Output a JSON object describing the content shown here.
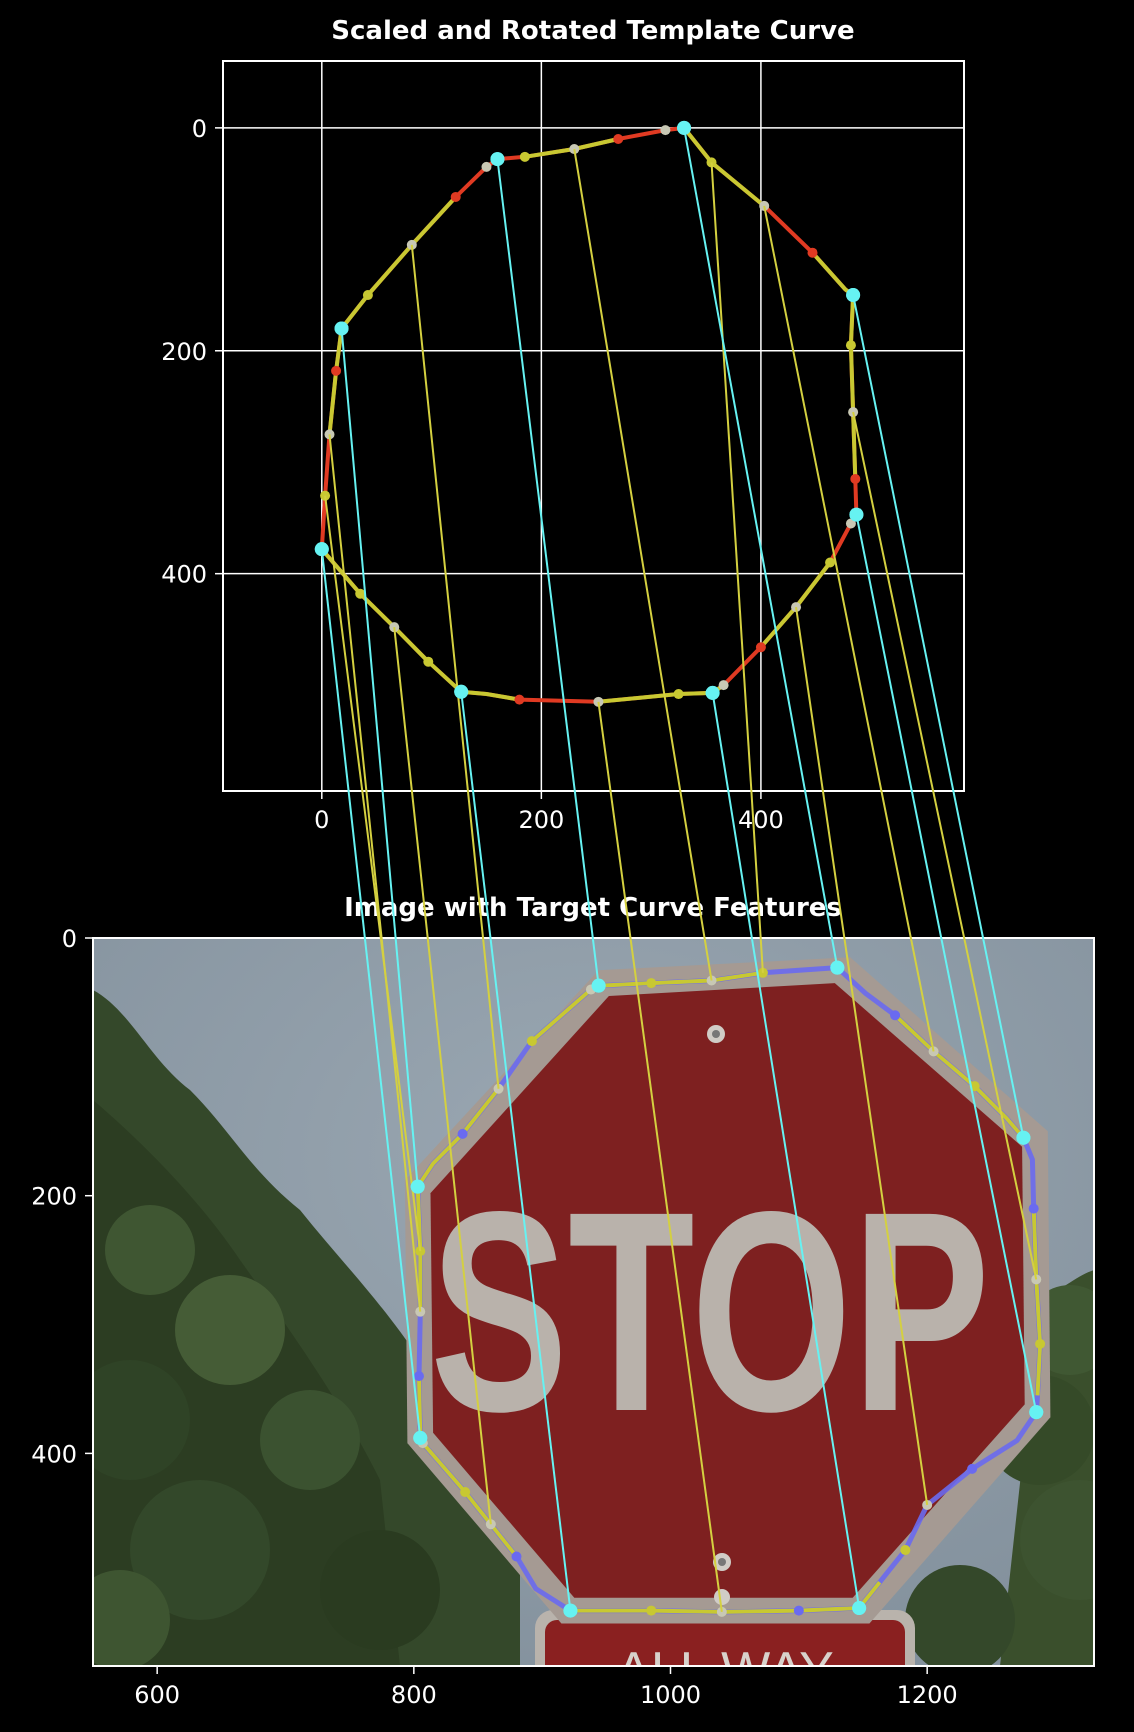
{
  "chart_data": [
    {
      "type": "scatter",
      "title": "Scaled and Rotated Template Curve",
      "xlim": [
        -90,
        585
      ],
      "ylim": [
        595,
        -60
      ],
      "xticks": [
        0,
        200,
        400
      ],
      "yticks": [
        0,
        200,
        400
      ],
      "grid": true,
      "background": "#000000",
      "curve": [
        [
          330,
          0
        ],
        [
          313,
          2
        ],
        [
          270,
          10
        ],
        [
          230,
          19
        ],
        [
          185,
          26
        ],
        [
          160,
          28
        ],
        [
          150,
          35
        ],
        [
          122,
          62
        ],
        [
          82,
          105
        ],
        [
          42,
          150
        ],
        [
          18,
          180
        ],
        [
          13,
          218
        ],
        [
          7,
          275
        ],
        [
          3,
          330
        ],
        [
          0,
          378
        ],
        [
          35,
          418
        ],
        [
          66,
          448
        ],
        [
          97,
          479
        ],
        [
          127,
          506
        ],
        [
          150,
          508
        ],
        [
          180,
          513
        ],
        [
          252,
          515
        ],
        [
          325,
          508
        ],
        [
          356,
          507
        ],
        [
          366,
          500
        ],
        [
          400,
          466
        ],
        [
          432,
          430
        ],
        [
          463,
          390
        ],
        [
          482,
          355
        ],
        [
          487,
          347
        ],
        [
          486,
          315
        ],
        [
          484,
          255
        ],
        [
          482,
          195
        ],
        [
          484,
          150
        ],
        [
          477,
          145
        ],
        [
          447,
          112
        ],
        [
          403,
          70
        ],
        [
          355,
          31
        ],
        [
          330,
          0
        ]
      ],
      "red_points": [
        [
          270,
          10
        ],
        [
          122,
          62
        ],
        [
          13,
          218
        ],
        [
          180,
          513
        ],
        [
          400,
          466
        ],
        [
          486,
          315
        ],
        [
          447,
          112
        ]
      ],
      "yellow_points": [
        [
          185,
          26
        ],
        [
          42,
          150
        ],
        [
          3,
          330
        ],
        [
          35,
          418
        ],
        [
          97,
          479
        ],
        [
          325,
          508
        ],
        [
          463,
          390
        ],
        [
          482,
          195
        ],
        [
          355,
          31
        ]
      ],
      "gray_points": [
        [
          313,
          2
        ],
        [
          150,
          35
        ],
        [
          82,
          105
        ],
        [
          7,
          275
        ],
        [
          66,
          448
        ],
        [
          252,
          515
        ],
        [
          366,
          500
        ],
        [
          432,
          430
        ],
        [
          482,
          355
        ],
        [
          484,
          255
        ],
        [
          403,
          70
        ],
        [
          230,
          19
        ]
      ],
      "cyan_points": [
        [
          330,
          0
        ],
        [
          160,
          28
        ],
        [
          18,
          180
        ],
        [
          0,
          378
        ],
        [
          127,
          506
        ],
        [
          356,
          507
        ],
        [
          487,
          347
        ],
        [
          484,
          150
        ]
      ]
    },
    {
      "type": "image",
      "title": "Image with Target Curve Features",
      "xlim": [
        550,
        1330
      ],
      "ylim": [
        565,
        0
      ],
      "xticks": [
        600,
        800,
        1000,
        1200
      ],
      "yticks": [
        0,
        200,
        400
      ],
      "sign_text": "STOP",
      "lower_sign_text": "ALL WAY",
      "curve": [
        [
          1130,
          23
        ],
        [
          1152,
          43
        ],
        [
          1175,
          60
        ],
        [
          1205,
          88
        ],
        [
          1237,
          115
        ],
        [
          1262,
          140
        ],
        [
          1275,
          155
        ],
        [
          1282,
          172
        ],
        [
          1283,
          210
        ],
        [
          1285,
          265
        ],
        [
          1288,
          315
        ],
        [
          1286,
          355
        ],
        [
          1285,
          368
        ],
        [
          1270,
          390
        ],
        [
          1235,
          412
        ],
        [
          1200,
          440
        ],
        [
          1183,
          475
        ],
        [
          1163,
          500
        ],
        [
          1147,
          520
        ],
        [
          1100,
          522
        ],
        [
          1040,
          523
        ],
        [
          985,
          522
        ],
        [
          922,
          522
        ],
        [
          895,
          505
        ],
        [
          880,
          480
        ],
        [
          860,
          455
        ],
        [
          840,
          430
        ],
        [
          807,
          392
        ],
        [
          805,
          388
        ],
        [
          804,
          340
        ],
        [
          805,
          290
        ],
        [
          805,
          243
        ],
        [
          803,
          193
        ],
        [
          815,
          175
        ],
        [
          838,
          152
        ],
        [
          866,
          117
        ],
        [
          892,
          80
        ],
        [
          938,
          40
        ],
        [
          944,
          37
        ],
        [
          985,
          35
        ],
        [
          1032,
          33
        ],
        [
          1072,
          27
        ],
        [
          1130,
          23
        ]
      ],
      "blue_points": [
        [
          1175,
          60
        ],
        [
          1283,
          210
        ],
        [
          1235,
          412
        ],
        [
          1100,
          522
        ],
        [
          880,
          480
        ],
        [
          804,
          340
        ],
        [
          838,
          152
        ]
      ],
      "yellow_points": [
        [
          1237,
          115
        ],
        [
          1288,
          315
        ],
        [
          1183,
          475
        ],
        [
          985,
          522
        ],
        [
          840,
          430
        ],
        [
          805,
          243
        ],
        [
          892,
          80
        ],
        [
          985,
          35
        ],
        [
          1072,
          27
        ]
      ],
      "gray_points": [
        [
          1205,
          88
        ],
        [
          1285,
          265
        ],
        [
          1200,
          440
        ],
        [
          1040,
          523
        ],
        [
          860,
          455
        ],
        [
          807,
          392
        ],
        [
          805,
          290
        ],
        [
          866,
          117
        ],
        [
          938,
          40
        ],
        [
          1032,
          33
        ]
      ],
      "cyan_points": [
        [
          1130,
          23
        ],
        [
          1275,
          155
        ],
        [
          1285,
          368
        ],
        [
          1147,
          520
        ],
        [
          922,
          522
        ],
        [
          805,
          388
        ],
        [
          803,
          193
        ],
        [
          944,
          37
        ]
      ]
    }
  ],
  "matches": {
    "cyan": [
      [
        [
          330,
          0
        ],
        [
          1130,
          23
        ]
      ],
      [
        [
          484,
          150
        ],
        [
          1275,
          155
        ]
      ],
      [
        [
          487,
          347
        ],
        [
          1285,
          368
        ]
      ],
      [
        [
          356,
          507
        ],
        [
          1147,
          520
        ]
      ],
      [
        [
          127,
          506
        ],
        [
          922,
          522
        ]
      ],
      [
        [
          0,
          378
        ],
        [
          805,
          388
        ]
      ],
      [
        [
          18,
          180
        ],
        [
          803,
          193
        ]
      ],
      [
        [
          160,
          28
        ],
        [
          944,
          37
        ]
      ]
    ],
    "yellow": [
      [
        [
          355,
          31
        ],
        [
          1072,
          27
        ]
      ],
      [
        [
          230,
          19
        ],
        [
          1032,
          33
        ]
      ],
      [
        [
          82,
          105
        ],
        [
          866,
          117
        ]
      ],
      [
        [
          7,
          275
        ],
        [
          805,
          290
        ]
      ],
      [
        [
          3,
          330
        ],
        [
          805,
          243
        ]
      ],
      [
        [
          66,
          448
        ],
        [
          860,
          455
        ]
      ],
      [
        [
          252,
          515
        ],
        [
          1040,
          523
        ]
      ],
      [
        [
          403,
          70
        ],
        [
          1205,
          88
        ]
      ],
      [
        [
          432,
          430
        ],
        [
          1200,
          440
        ]
      ],
      [
        [
          484,
          255
        ],
        [
          1285,
          265
        ]
      ]
    ]
  },
  "colors": {
    "curve_yellow": "#c8c832",
    "curve_red": "#e03a22",
    "curve_blue": "#6a6af0",
    "point_red": "#e03a22",
    "point_yellow": "#c8c832",
    "point_gray": "#c8c8b4",
    "point_cyan": "#66f2f2",
    "match_cyan": "#66f2f2",
    "match_yellow": "#d4d040",
    "axes": "#ffffff"
  }
}
